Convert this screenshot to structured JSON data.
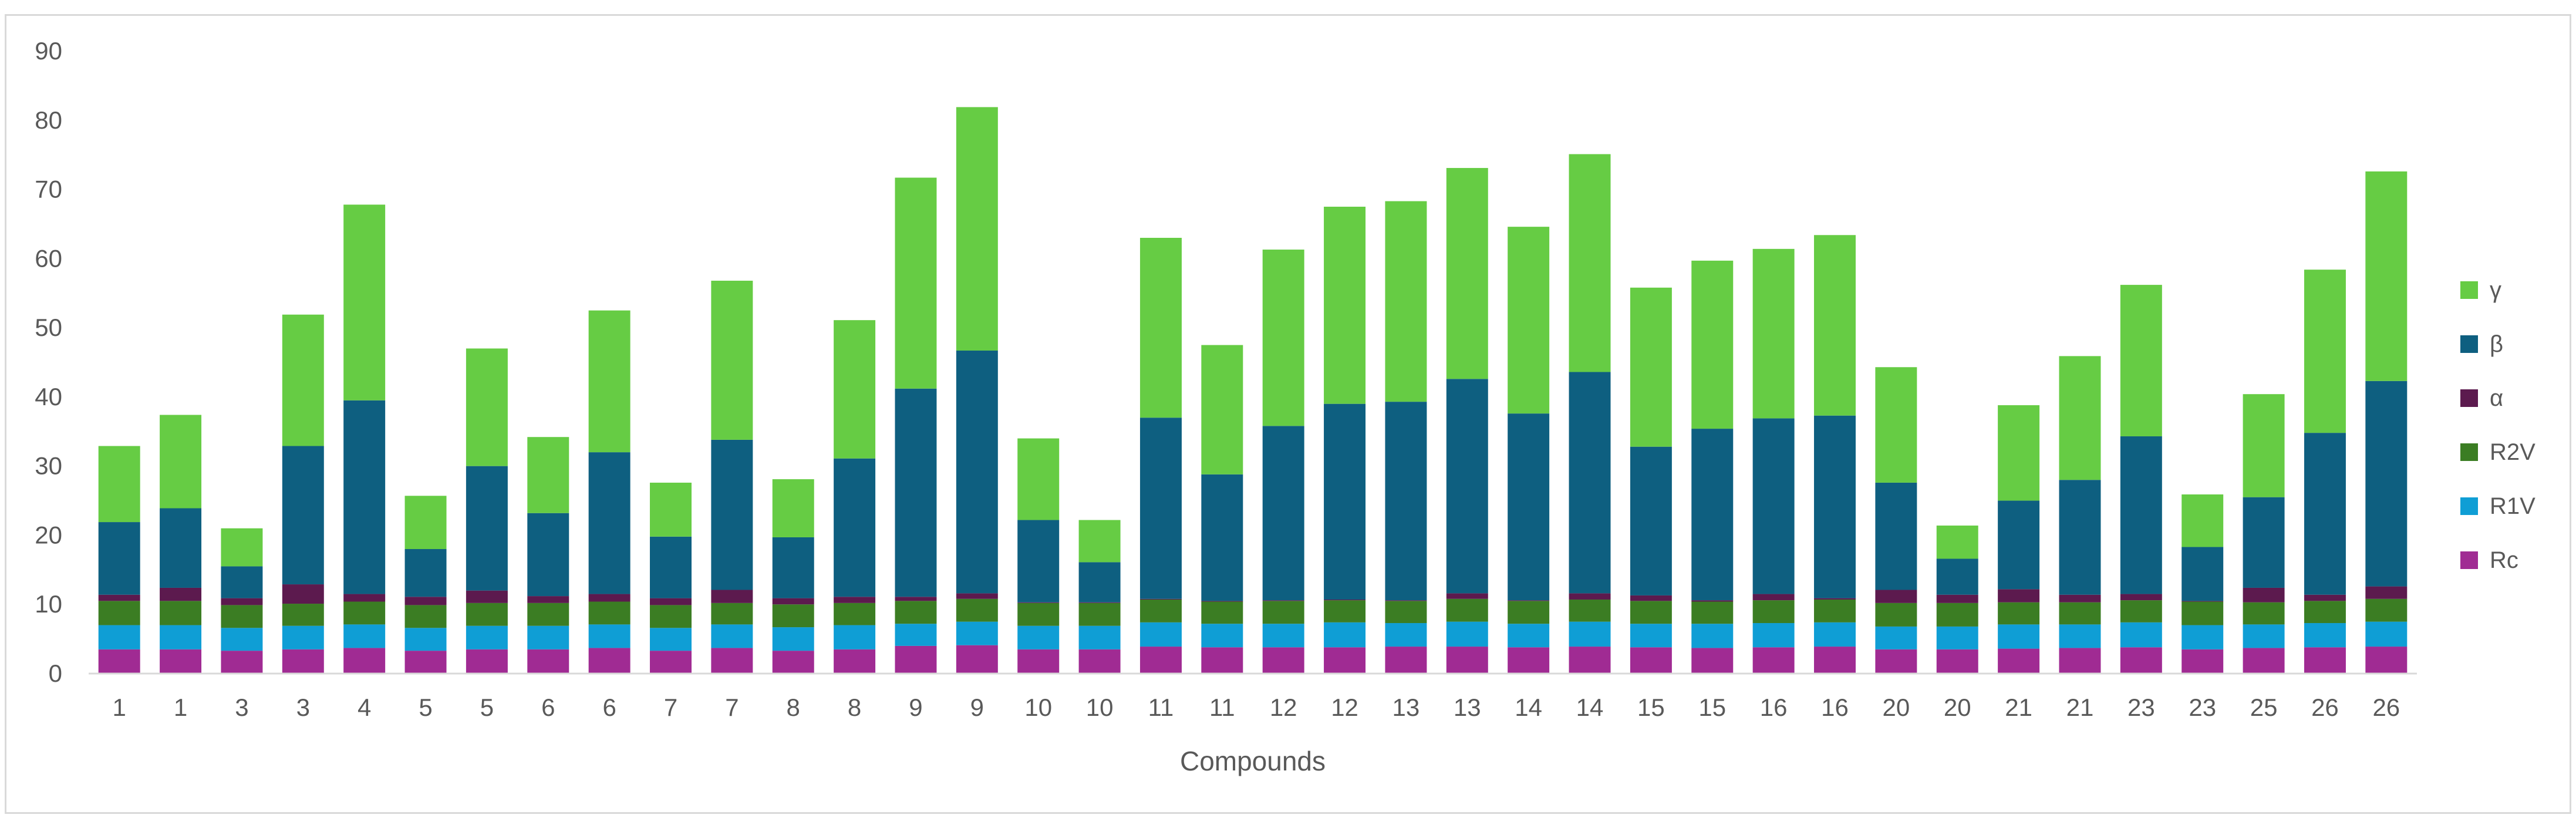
{
  "chart_data": {
    "type": "bar",
    "stacked": true,
    "title": "",
    "xlabel": "Compounds",
    "ylabel": "",
    "ylim": [
      0,
      90
    ],
    "yticks": [
      0,
      10,
      20,
      30,
      40,
      50,
      60,
      70,
      80,
      90
    ],
    "grid": false,
    "legend_position": "right",
    "categories": [
      "1",
      "1",
      "3",
      "3",
      "4",
      "5",
      "5",
      "6",
      "6",
      "7",
      "7",
      "8",
      "8",
      "9",
      "9",
      "10",
      "10",
      "11",
      "11",
      "12",
      "12",
      "13",
      "13",
      "14",
      "14",
      "15",
      "15",
      "16",
      "16",
      "20",
      "20",
      "21",
      "21",
      "23",
      "23",
      "25",
      "26",
      "26"
    ],
    "series": [
      {
        "name": "Rc",
        "color": "#a02b93",
        "values": [
          3.5,
          3.5,
          3.3,
          3.5,
          3.7,
          3.3,
          3.5,
          3.5,
          3.7,
          3.3,
          3.7,
          3.3,
          3.5,
          4.0,
          4.1,
          3.5,
          3.5,
          3.9,
          3.8,
          3.8,
          3.8,
          3.9,
          3.9,
          3.8,
          3.9,
          3.8,
          3.7,
          3.8,
          3.9,
          3.5,
          3.5,
          3.6,
          3.7,
          3.8,
          3.5,
          3.7,
          3.8,
          3.9
        ]
      },
      {
        "name": "R1V",
        "color": "#0f9ed5",
        "values": [
          3.5,
          3.5,
          3.3,
          3.4,
          3.4,
          3.3,
          3.4,
          3.4,
          3.4,
          3.3,
          3.4,
          3.4,
          3.5,
          3.2,
          3.4,
          3.4,
          3.4,
          3.5,
          3.4,
          3.4,
          3.6,
          3.4,
          3.6,
          3.4,
          3.6,
          3.4,
          3.5,
          3.5,
          3.5,
          3.3,
          3.3,
          3.5,
          3.4,
          3.6,
          3.5,
          3.4,
          3.5,
          3.6
        ]
      },
      {
        "name": "R2V",
        "color": "#3b7d23",
        "values": [
          3.5,
          3.5,
          3.3,
          3.2,
          3.3,
          3.3,
          3.3,
          3.3,
          3.3,
          3.3,
          3.1,
          3.3,
          3.2,
          3.3,
          3.3,
          3.3,
          3.3,
          3.3,
          3.2,
          3.3,
          3.2,
          3.2,
          3.3,
          3.3,
          3.2,
          3.3,
          3.2,
          3.3,
          3.3,
          3.4,
          3.4,
          3.2,
          3.2,
          3.2,
          3.4,
          3.2,
          3.2,
          3.3
        ]
      },
      {
        "name": "α",
        "color": "#5c1a4e",
        "values": [
          0.9,
          1.9,
          1.0,
          2.8,
          1.1,
          1.2,
          1.8,
          1.0,
          1.1,
          1.0,
          1.9,
          0.9,
          0.9,
          0.6,
          0.8,
          0.1,
          0.1,
          0.1,
          0.1,
          0.1,
          0.1,
          0.1,
          0.8,
          0.1,
          0.9,
          0.8,
          0.2,
          0.9,
          0.2,
          1.9,
          1.2,
          1.9,
          1.1,
          0.9,
          0.1,
          2.1,
          0.9,
          1.8
        ]
      },
      {
        "name": "β",
        "color": "#0e5f80",
        "values": [
          10.5,
          11.5,
          4.6,
          20.0,
          28.0,
          6.9,
          18.0,
          12.0,
          20.5,
          8.9,
          21.7,
          8.8,
          20.0,
          30.1,
          35.1,
          11.9,
          5.8,
          26.2,
          18.3,
          25.2,
          28.3,
          28.7,
          31.0,
          27.0,
          32.0,
          21.5,
          24.8,
          25.4,
          26.4,
          15.5,
          5.2,
          12.8,
          16.6,
          22.8,
          7.8,
          13.1,
          23.4,
          29.7
        ]
      },
      {
        "name": "γ",
        "color": "#66cc44",
        "values": [
          11.0,
          13.5,
          5.5,
          19.0,
          28.3,
          7.7,
          17.0,
          11.0,
          20.5,
          7.8,
          23.0,
          8.4,
          20.0,
          30.5,
          35.2,
          11.8,
          6.1,
          26.0,
          18.7,
          25.5,
          28.5,
          29.0,
          30.5,
          27.0,
          31.5,
          23.0,
          24.3,
          24.5,
          26.1,
          16.7,
          4.8,
          13.8,
          17.9,
          21.9,
          7.6,
          14.9,
          23.6,
          30.3
        ]
      }
    ]
  }
}
